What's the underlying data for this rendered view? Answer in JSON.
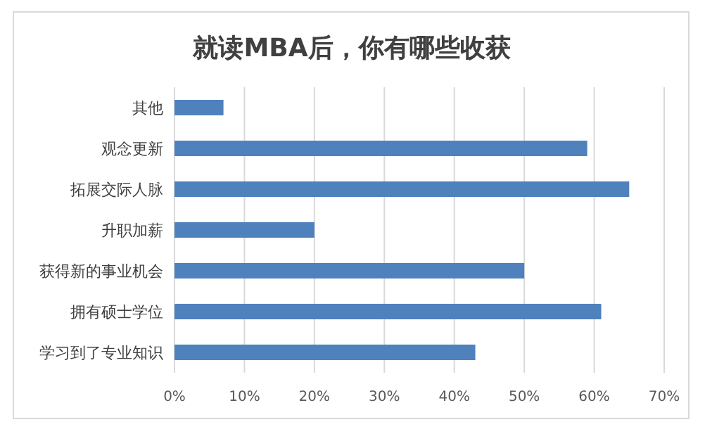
{
  "chart_data": {
    "type": "bar",
    "orientation": "horizontal",
    "title": "就读MBA后，你有哪些收获",
    "categories": [
      "其他",
      "观念更新",
      "拓展交际人脉",
      "升职加薪",
      "获得新的事业机会",
      "拥有硕士学位",
      "学习到了专业知识"
    ],
    "values": [
      7,
      59,
      65,
      20,
      50,
      61,
      43
    ],
    "color": "#4f81bd",
    "xlim": [
      0,
      70
    ],
    "xticks": [
      {
        "value": 0,
        "label": "0%"
      },
      {
        "value": 10,
        "label": "10%"
      },
      {
        "value": 20,
        "label": "20%"
      },
      {
        "value": 30,
        "label": "30%"
      },
      {
        "value": 40,
        "label": "40%"
      },
      {
        "value": 50,
        "label": "50%"
      },
      {
        "value": 60,
        "label": "60%"
      },
      {
        "value": 70,
        "label": "70%"
      }
    ],
    "grid": "x"
  }
}
